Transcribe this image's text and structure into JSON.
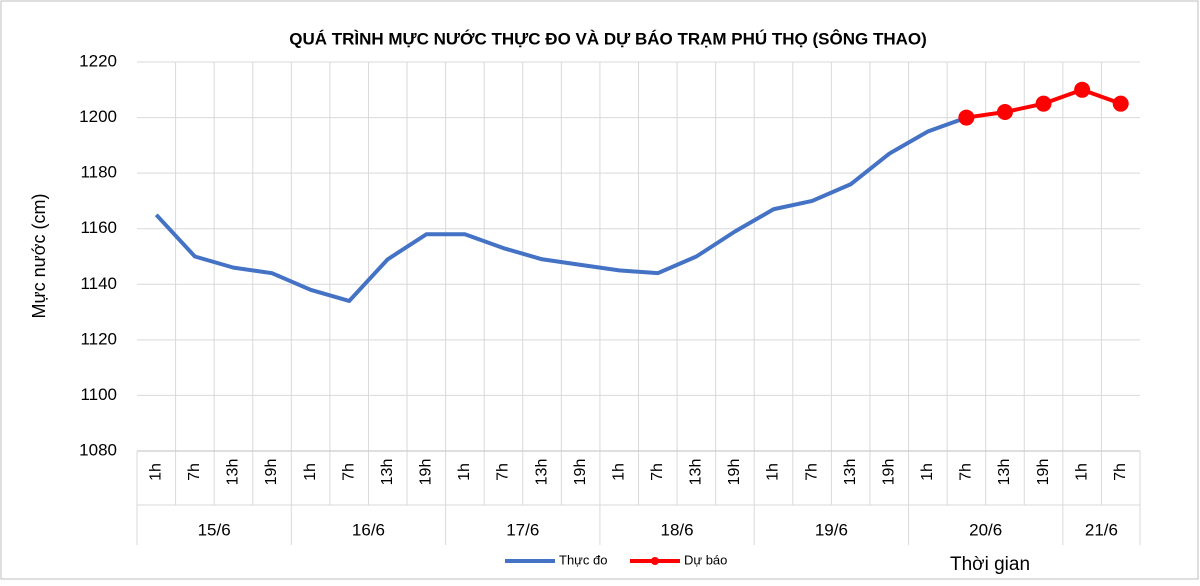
{
  "chart_data": {
    "type": "line",
    "title": "QUÁ TRÌNH MỰC NƯỚC THỰC ĐO VÀ DỰ BÁO TRẠM PHÚ THỌ (SÔNG THAO)",
    "y_label": "Mực nước (cm)",
    "x_label": "Thời gian",
    "category_groups": [
      {
        "label": "15/6",
        "categories": [
          "1h",
          "7h",
          "13h",
          "19h"
        ]
      },
      {
        "label": "16/6",
        "categories": [
          "1h",
          "7h",
          "13h",
          "19h"
        ]
      },
      {
        "label": "17/6",
        "categories": [
          "1h",
          "7h",
          "13h",
          "19h"
        ]
      },
      {
        "label": "18/6",
        "categories": [
          "1h",
          "7h",
          "13h",
          "19h"
        ]
      },
      {
        "label": "19/6",
        "categories": [
          "1h",
          "7h",
          "13h",
          "19h"
        ]
      },
      {
        "label": "20/6",
        "categories": [
          "1h",
          "7h",
          "13h",
          "19h"
        ]
      },
      {
        "label": "21/6",
        "categories": [
          "1h",
          "7h"
        ]
      }
    ],
    "series": [
      {
        "name": "Thực đo",
        "color": "#4472c4",
        "markers": false,
        "values": [
          1165,
          1150,
          1146,
          1144,
          1138,
          1134,
          1149,
          1158,
          1158,
          1153,
          1149,
          1147,
          1145,
          1144,
          1150,
          1159,
          1167,
          1170,
          1176,
          1187,
          1195,
          1200,
          null,
          null,
          null,
          null
        ]
      },
      {
        "name": "Dự báo",
        "color": "#ff0000",
        "markers": true,
        "values": [
          null,
          null,
          null,
          null,
          null,
          null,
          null,
          null,
          null,
          null,
          null,
          null,
          null,
          null,
          null,
          null,
          null,
          null,
          null,
          null,
          null,
          1200,
          1202,
          1205,
          1210,
          1205
        ]
      }
    ],
    "ylim": [
      1080,
      1220
    ],
    "yticks": [
      1080,
      1100,
      1120,
      1140,
      1160,
      1180,
      1200,
      1220
    ],
    "grid": true,
    "legend": "bottom"
  }
}
